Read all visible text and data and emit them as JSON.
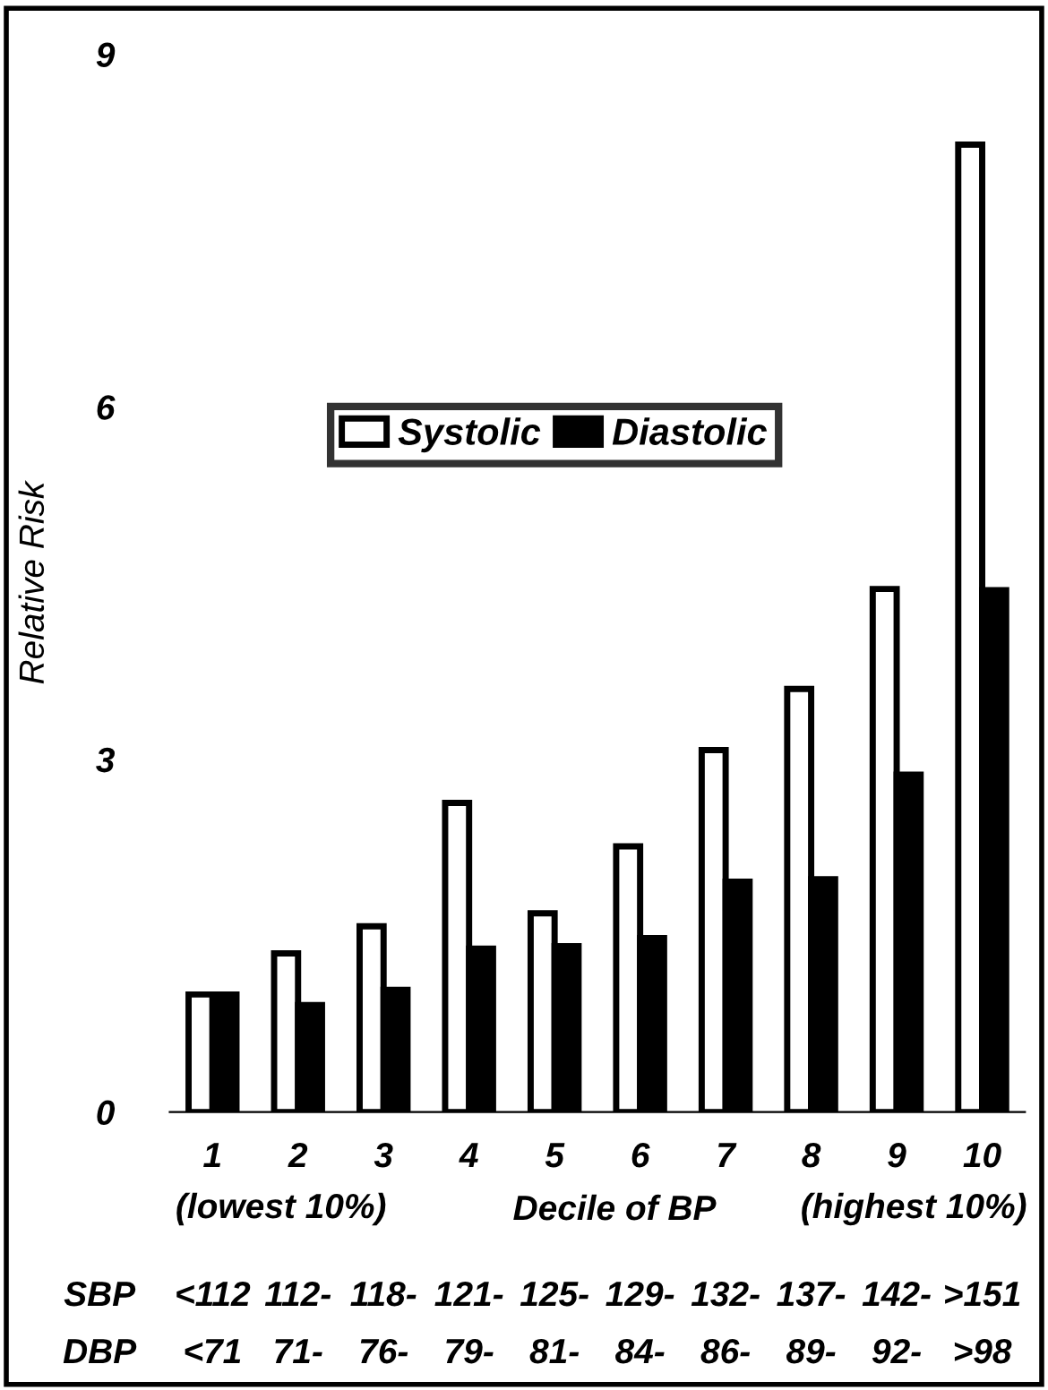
{
  "chart_data": {
    "type": "bar",
    "ylabel": "Relative Risk",
    "xlabel": "Decile of BP",
    "categories": [
      "1",
      "2",
      "3",
      "4",
      "5",
      "6",
      "7",
      "8",
      "9",
      "10"
    ],
    "series": [
      {
        "name": "Systolic",
        "color": "#ffffff",
        "values": [
          1.0,
          1.35,
          1.58,
          2.63,
          1.69,
          2.26,
          3.08,
          3.6,
          4.45,
          8.23
        ]
      },
      {
        "name": "Diastolic",
        "color": "#000000",
        "values": [
          1.0,
          0.91,
          1.04,
          1.39,
          1.41,
          1.48,
          1.96,
          1.98,
          2.87,
          4.44
        ]
      }
    ],
    "ylim": [
      0,
      9
    ],
    "yticks": [
      0,
      3,
      6,
      9
    ],
    "grid": false,
    "legend": "center",
    "annotations": [
      "(lowest 10%)",
      "(highest 10%)",
      "SBP",
      "DBP",
      "<112",
      "112-",
      "118-",
      "121-",
      "125-",
      "129-",
      "132-",
      "137-",
      "142-",
      ">151",
      "<71",
      "71-",
      "76-",
      "79-",
      "81-",
      "84-",
      "86-",
      "89-",
      "92-",
      ">98"
    ]
  }
}
